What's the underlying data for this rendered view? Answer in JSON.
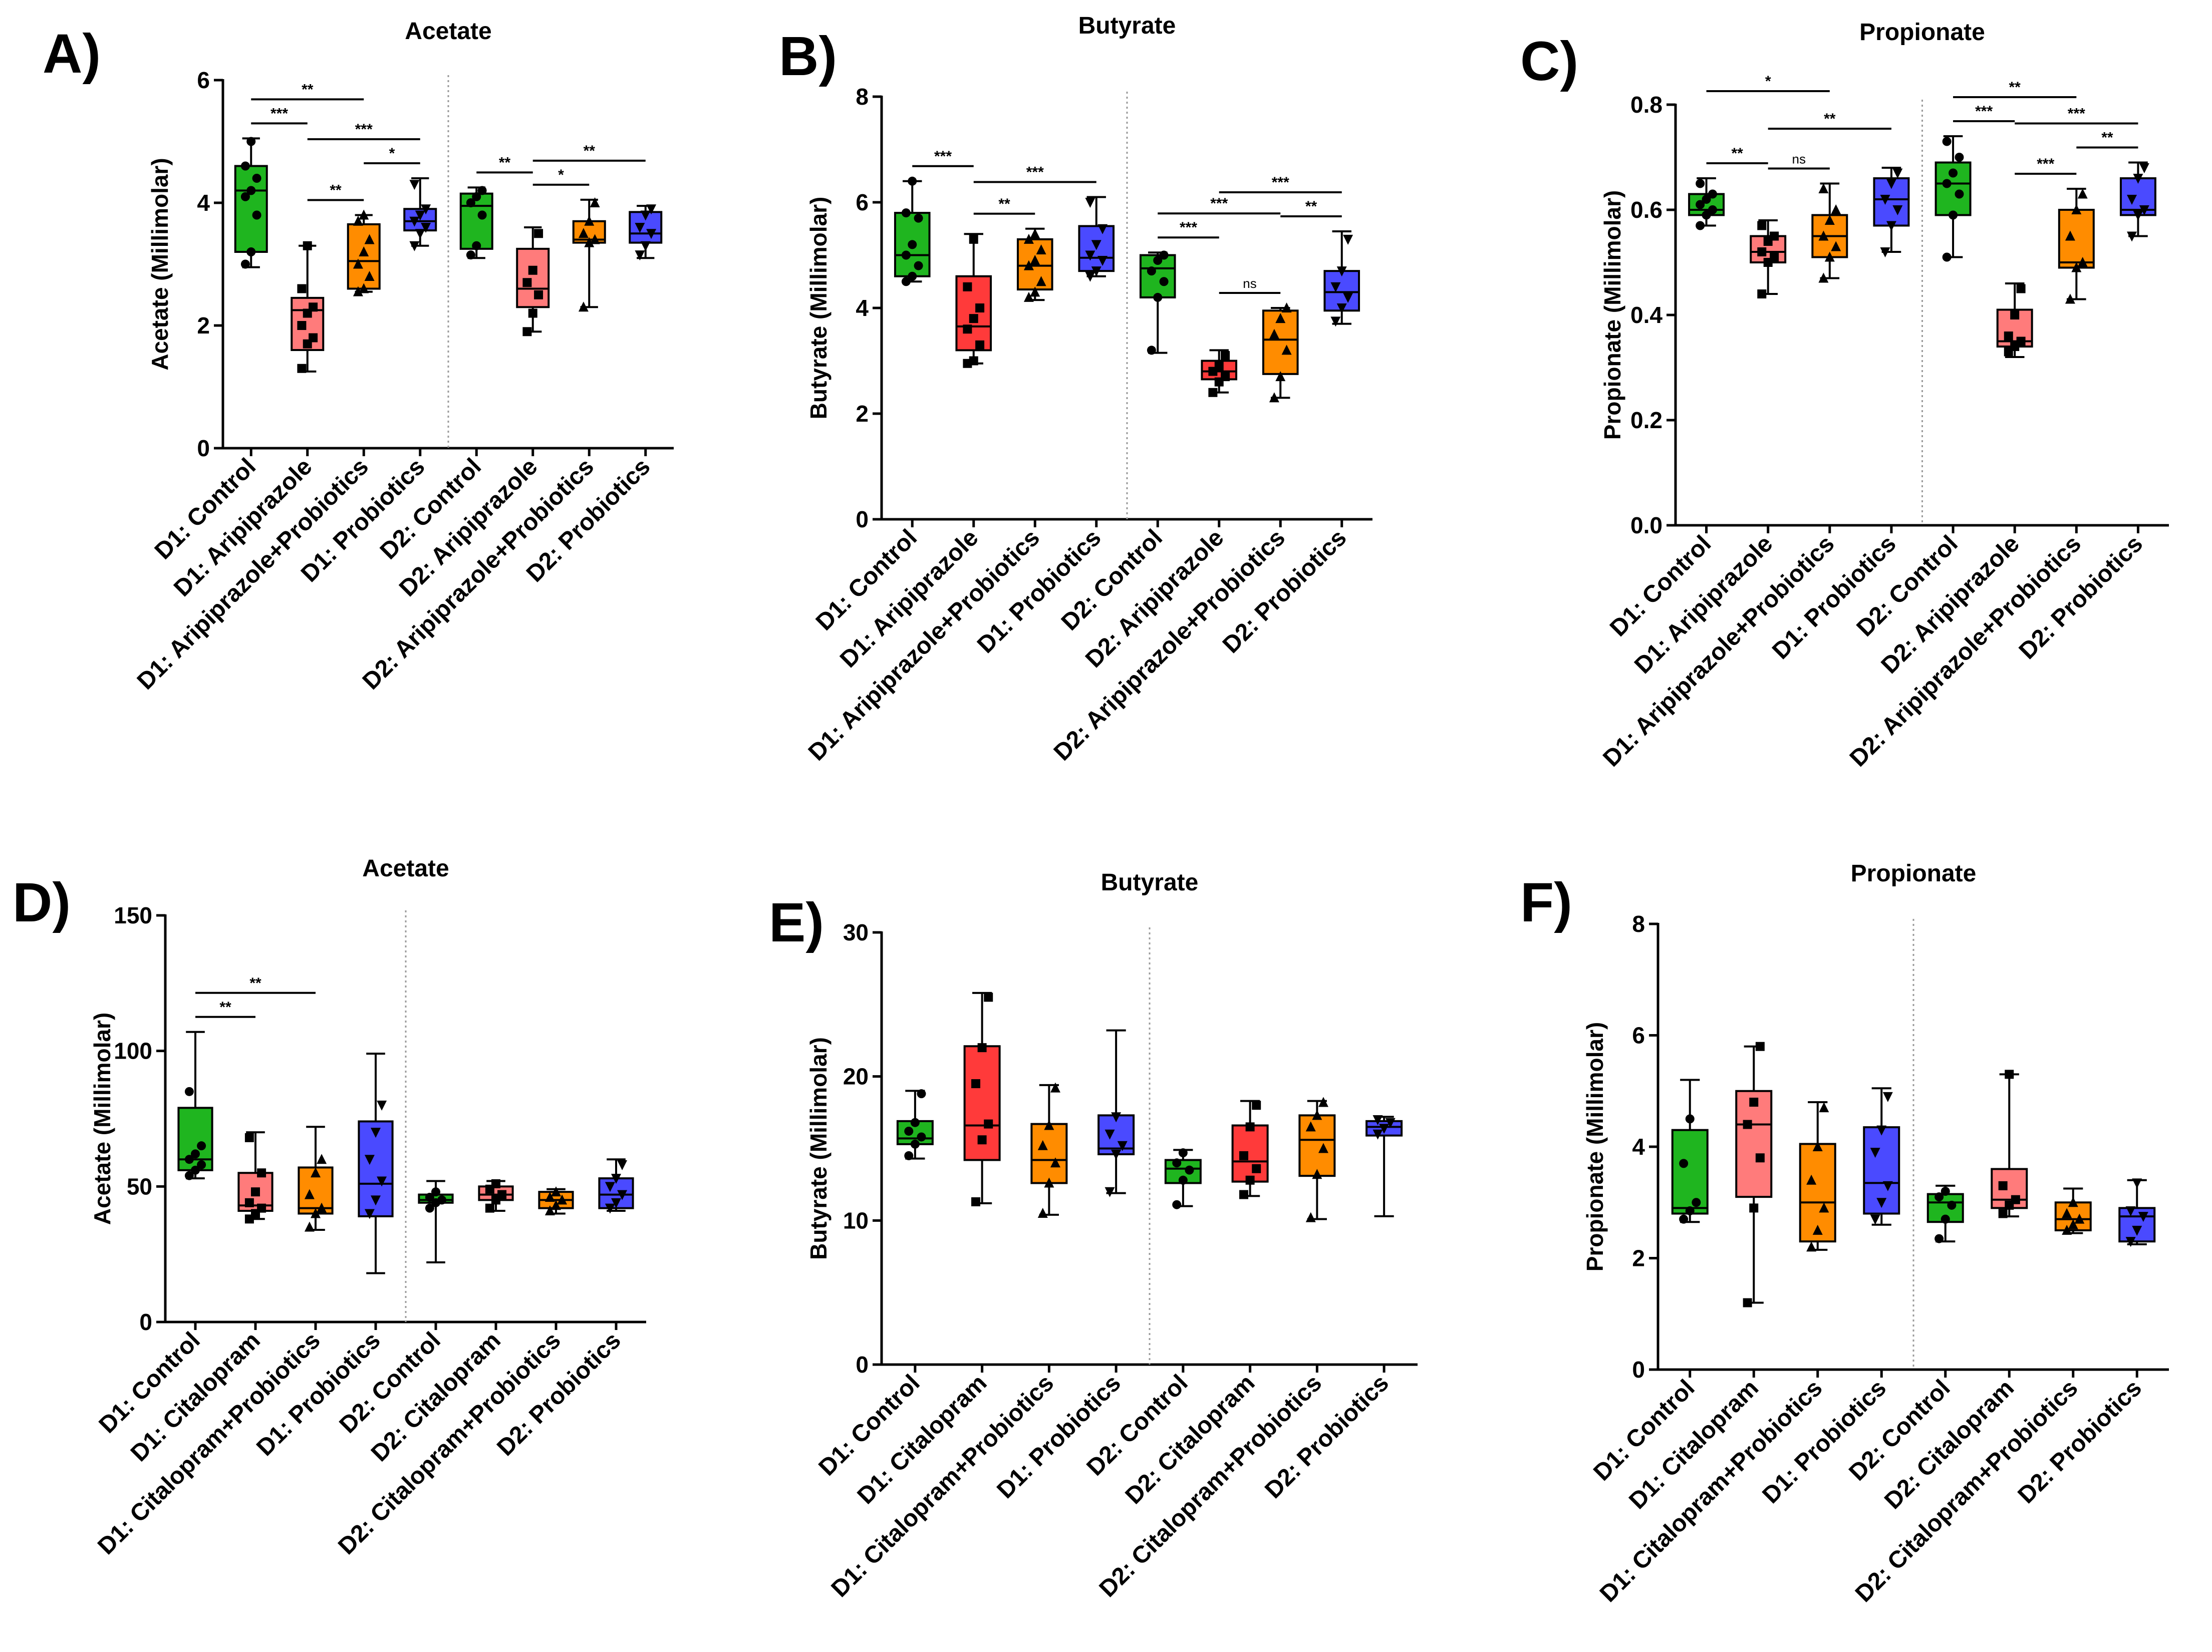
{
  "chart_data": [
    {
      "panel_label": "A)",
      "type": "box",
      "title": "Acetate",
      "ylabel": "Acetate (Millimolar)",
      "ylim": [
        0,
        6
      ],
      "yticks": [
        "0",
        "2",
        "4",
        "6"
      ],
      "categories": [
        "D1: Control",
        "D1: Aripiprazole",
        "D1: Aripiprazole+Probiotics",
        "D1: Probiotics",
        "D2: Control",
        "D2: Aripiprazole",
        "D2: Aripiprazole+Probiotics",
        "D2: Probiotics"
      ],
      "boxes": [
        {
          "min": 2.95,
          "q1": 3.2,
          "median": 4.2,
          "q3": 4.6,
          "max": 5.05,
          "points": [
            3.0,
            3.2,
            3.8,
            4.1,
            4.2,
            4.4,
            4.6,
            5.0
          ]
        },
        {
          "min": 1.25,
          "q1": 1.6,
          "median": 2.25,
          "q3": 2.45,
          "max": 3.3,
          "points": [
            1.3,
            1.7,
            1.8,
            2.0,
            2.2,
            2.3,
            2.6,
            3.3
          ]
        },
        {
          "min": 2.55,
          "q1": 2.6,
          "median": 3.05,
          "q3": 3.65,
          "max": 3.8,
          "points": [
            2.55,
            2.6,
            2.8,
            3.0,
            3.2,
            3.4,
            3.7,
            3.8
          ]
        },
        {
          "min": 3.3,
          "q1": 3.55,
          "median": 3.7,
          "q3": 3.9,
          "max": 4.4,
          "points": [
            3.3,
            3.5,
            3.6,
            3.7,
            3.8,
            3.9,
            4.3
          ]
        },
        {
          "min": 3.1,
          "q1": 3.25,
          "median": 3.95,
          "q3": 4.15,
          "max": 4.25,
          "points": [
            3.15,
            3.3,
            3.8,
            4.0,
            4.1,
            4.2
          ]
        },
        {
          "min": 1.9,
          "q1": 2.3,
          "median": 2.6,
          "q3": 3.25,
          "max": 3.6,
          "points": [
            1.9,
            2.2,
            2.5,
            2.7,
            2.9,
            3.5
          ]
        },
        {
          "min": 2.3,
          "q1": 3.35,
          "median": 3.4,
          "q3": 3.7,
          "max": 4.05,
          "points": [
            2.3,
            3.35,
            3.4,
            3.5,
            3.7,
            4.0
          ]
        },
        {
          "min": 3.1,
          "q1": 3.35,
          "median": 3.5,
          "q3": 3.85,
          "max": 3.95,
          "points": [
            3.15,
            3.3,
            3.5,
            3.6,
            3.8,
            3.9
          ]
        }
      ],
      "significance": [
        {
          "from": 0,
          "to": 2,
          "label": "**"
        },
        {
          "from": 0,
          "to": 1,
          "label": "***"
        },
        {
          "from": 1,
          "to": 3,
          "label": "***"
        },
        {
          "from": 1,
          "to": 2,
          "label": "**"
        },
        {
          "from": 2,
          "to": 3,
          "label": "*"
        },
        {
          "from": 4,
          "to": 5,
          "label": "**"
        },
        {
          "from": 5,
          "to": 7,
          "label": "**"
        },
        {
          "from": 5,
          "to": 6,
          "label": "*"
        }
      ]
    },
    {
      "panel_label": "B)",
      "type": "box",
      "title": "Butyrate",
      "ylabel": "Butyrate (Millimolar)",
      "ylim": [
        0,
        8
      ],
      "yticks": [
        "0",
        "2",
        "4",
        "6",
        "8"
      ],
      "categories": [
        "D1: Control",
        "D1: Aripiprazole",
        "D1: Aripiprazole+Probiotics",
        "D1: Probiotics",
        "D2: Control",
        "D2: Aripiprazole",
        "D2: Aripiprazole+Probiotics",
        "D2: Probiotics"
      ],
      "boxes": [
        {
          "min": 4.5,
          "q1": 4.6,
          "median": 5.0,
          "q3": 5.8,
          "max": 6.4,
          "points": [
            4.5,
            4.6,
            4.8,
            5.0,
            5.2,
            5.7,
            5.8,
            6.4
          ]
        },
        {
          "min": 2.95,
          "q1": 3.2,
          "median": 3.65,
          "q3": 4.6,
          "max": 5.4,
          "points": [
            2.95,
            3.0,
            3.3,
            3.6,
            3.8,
            4.0,
            4.4,
            5.3
          ]
        },
        {
          "min": 4.15,
          "q1": 4.35,
          "median": 4.8,
          "q3": 5.3,
          "max": 5.5,
          "points": [
            4.2,
            4.3,
            4.5,
            4.8,
            4.9,
            5.1,
            5.3,
            5.4
          ]
        },
        {
          "min": 4.6,
          "q1": 4.7,
          "median": 4.95,
          "q3": 5.55,
          "max": 6.1,
          "points": [
            4.6,
            4.7,
            4.9,
            5.0,
            5.2,
            5.5,
            6.0
          ]
        },
        {
          "min": 3.15,
          "q1": 4.2,
          "median": 4.75,
          "q3": 5.0,
          "max": 5.05,
          "points": [
            3.2,
            4.2,
            4.5,
            4.7,
            4.9,
            5.0
          ]
        },
        {
          "min": 2.4,
          "q1": 2.65,
          "median": 2.8,
          "q3": 3.0,
          "max": 3.2,
          "points": [
            2.4,
            2.6,
            2.7,
            2.8,
            2.9,
            3.1
          ]
        },
        {
          "min": 2.3,
          "q1": 2.75,
          "median": 3.4,
          "q3": 3.95,
          "max": 4.0,
          "points": [
            2.3,
            2.7,
            3.2,
            3.5,
            3.8,
            4.0
          ]
        },
        {
          "min": 3.7,
          "q1": 3.95,
          "median": 4.3,
          "q3": 4.7,
          "max": 5.45,
          "points": [
            3.75,
            4.0,
            4.2,
            4.4,
            4.7,
            5.3
          ]
        }
      ],
      "significance": [
        {
          "from": 0,
          "to": 1,
          "label": "***"
        },
        {
          "from": 1,
          "to": 3,
          "label": "***"
        },
        {
          "from": 1,
          "to": 2,
          "label": "**"
        },
        {
          "from": 4,
          "to": 5,
          "label": "***"
        },
        {
          "from": 5,
          "to": 7,
          "label": "***"
        },
        {
          "from": 4,
          "to": 6,
          "label": "***"
        },
        {
          "from": 6,
          "to": 7,
          "label": "**"
        },
        {
          "from": 5,
          "to": 6,
          "label": "ns"
        }
      ]
    },
    {
      "panel_label": "C)",
      "type": "box",
      "title": "Propionate",
      "ylabel": "Propionate (Millimolar)",
      "ylim": [
        0,
        0.8
      ],
      "yticks": [
        "0.0",
        "0.2",
        "0.4",
        "0.6",
        "0.8"
      ],
      "categories": [
        "D1: Control",
        "D1: Aripiprazole",
        "D1: Aripiprazole+Probiotics",
        "D1: Probiotics",
        "D2: Control",
        "D2: Aripiprazole",
        "D2: Aripiprazole+Probiotics",
        "D2: Probiotics"
      ],
      "boxes": [
        {
          "min": 0.57,
          "q1": 0.59,
          "median": 0.6,
          "q3": 0.63,
          "max": 0.66,
          "points": [
            0.57,
            0.59,
            0.6,
            0.61,
            0.62,
            0.63,
            0.65
          ]
        },
        {
          "min": 0.44,
          "q1": 0.5,
          "median": 0.52,
          "q3": 0.55,
          "max": 0.58,
          "points": [
            0.44,
            0.5,
            0.51,
            0.52,
            0.54,
            0.55,
            0.57
          ]
        },
        {
          "min": 0.47,
          "q1": 0.51,
          "median": 0.55,
          "q3": 0.59,
          "max": 0.65,
          "points": [
            0.47,
            0.51,
            0.53,
            0.55,
            0.58,
            0.6,
            0.64
          ]
        },
        {
          "min": 0.52,
          "q1": 0.57,
          "median": 0.62,
          "q3": 0.66,
          "max": 0.68,
          "points": [
            0.52,
            0.57,
            0.6,
            0.62,
            0.65,
            0.67
          ]
        },
        {
          "min": 0.51,
          "q1": 0.59,
          "median": 0.65,
          "q3": 0.69,
          "max": 0.74,
          "points": [
            0.51,
            0.59,
            0.63,
            0.65,
            0.67,
            0.7,
            0.73
          ]
        },
        {
          "min": 0.32,
          "q1": 0.34,
          "median": 0.35,
          "q3": 0.41,
          "max": 0.46,
          "points": [
            0.33,
            0.34,
            0.35,
            0.36,
            0.4,
            0.45
          ]
        },
        {
          "min": 0.43,
          "q1": 0.49,
          "median": 0.5,
          "q3": 0.6,
          "max": 0.64,
          "points": [
            0.43,
            0.49,
            0.5,
            0.55,
            0.6,
            0.63
          ]
        },
        {
          "min": 0.55,
          "q1": 0.59,
          "median": 0.6,
          "q3": 0.66,
          "max": 0.69,
          "points": [
            0.55,
            0.59,
            0.6,
            0.62,
            0.66,
            0.68
          ]
        }
      ],
      "significance": [
        {
          "from": 0,
          "to": 1,
          "label": "**"
        },
        {
          "from": 1,
          "to": 3,
          "label": "**"
        },
        {
          "from": 0,
          "to": 2,
          "label": "*"
        },
        {
          "from": 1,
          "to": 2,
          "label": "ns"
        },
        {
          "from": 4,
          "to": 5,
          "label": "***"
        },
        {
          "from": 5,
          "to": 7,
          "label": "***"
        },
        {
          "from": 4,
          "to": 6,
          "label": "**"
        },
        {
          "from": 6,
          "to": 7,
          "label": "**"
        },
        {
          "from": 5,
          "to": 6,
          "label": "***"
        }
      ]
    },
    {
      "panel_label": "D)",
      "type": "box",
      "title": "Acetate",
      "ylabel": "Acetate (Millimolar)",
      "ylim": [
        0,
        150
      ],
      "yticks": [
        "0",
        "50",
        "100",
        "150"
      ],
      "categories": [
        "D1: Control",
        "D1: Citalopram",
        "D1: Citalopram+Probiotics",
        "D1: Probiotics",
        "D2: Control",
        "D2: Citalopram",
        "D2: Citalopram+Probiotics",
        "D2: Probiotics"
      ],
      "boxes": [
        {
          "min": 53,
          "q1": 56,
          "median": 60,
          "q3": 79,
          "max": 107,
          "points": [
            54,
            56,
            58,
            60,
            62,
            65,
            85
          ]
        },
        {
          "min": 38,
          "q1": 41,
          "median": 43,
          "q3": 55,
          "max": 70,
          "points": [
            38,
            40,
            42,
            44,
            48,
            55,
            68
          ]
        },
        {
          "min": 34,
          "q1": 40,
          "median": 42,
          "q3": 57,
          "max": 72,
          "points": [
            35,
            40,
            42,
            47,
            55,
            60
          ]
        },
        {
          "min": 18,
          "q1": 39,
          "median": 51,
          "q3": 74,
          "max": 99,
          "points": [
            40,
            45,
            52,
            60,
            70,
            80
          ]
        },
        {
          "min": 22,
          "q1": 44,
          "median": 45,
          "q3": 47,
          "max": 52,
          "points": [
            42,
            44,
            45,
            46,
            48
          ]
        },
        {
          "min": 41,
          "q1": 45,
          "median": 47,
          "q3": 50,
          "max": 52,
          "points": [
            42,
            45,
            47,
            49,
            51
          ]
        },
        {
          "min": 40,
          "q1": 42,
          "median": 45,
          "q3": 48,
          "max": 49,
          "points": [
            41,
            43,
            45,
            46,
            48
          ]
        },
        {
          "min": 41,
          "q1": 42,
          "median": 47,
          "q3": 53,
          "max": 60,
          "points": [
            42,
            44,
            47,
            50,
            53,
            58
          ]
        }
      ],
      "significance": [
        {
          "from": 0,
          "to": 2,
          "label": "**"
        },
        {
          "from": 0,
          "to": 1,
          "label": "**"
        }
      ]
    },
    {
      "panel_label": "E)",
      "type": "box",
      "title": "Butyrate",
      "ylabel": "Butyrate (Millimolar)",
      "ylim": [
        0,
        30
      ],
      "yticks": [
        "0",
        "10",
        "20",
        "30"
      ],
      "categories": [
        "D1: Control",
        "D1: Citalopram",
        "D1: Citalopram+Probiotics",
        "D1: Probiotics",
        "D2: Control",
        "D2: Citalopram",
        "D2: Citalopram+Probiotics",
        "D2: Probiotics"
      ],
      "boxes": [
        {
          "min": 14.3,
          "q1": 15.3,
          "median": 15.7,
          "q3": 16.9,
          "max": 19.0,
          "points": [
            14.5,
            15.3,
            15.8,
            16.2,
            16.8,
            18.8
          ]
        },
        {
          "min": 11.2,
          "q1": 14.2,
          "median": 16.6,
          "q3": 22.1,
          "max": 25.8,
          "points": [
            11.3,
            15.6,
            16.7,
            19.5,
            22.0,
            25.5
          ]
        },
        {
          "min": 10.4,
          "q1": 12.6,
          "median": 14.2,
          "q3": 16.7,
          "max": 19.4,
          "points": [
            10.5,
            12.6,
            14.0,
            15.2,
            16.6,
            19.2
          ]
        },
        {
          "min": 11.9,
          "q1": 14.6,
          "median": 15.0,
          "q3": 17.3,
          "max": 23.2,
          "points": [
            12.0,
            14.6,
            15.2,
            16.0,
            17.2
          ]
        },
        {
          "min": 11.0,
          "q1": 12.6,
          "median": 13.6,
          "q3": 14.2,
          "max": 14.9,
          "points": [
            11.1,
            12.8,
            13.5,
            14.0,
            14.7
          ]
        },
        {
          "min": 11.7,
          "q1": 12.7,
          "median": 14.1,
          "q3": 16.6,
          "max": 18.3,
          "points": [
            11.8,
            12.8,
            13.6,
            14.5,
            16.5,
            18.0
          ]
        },
        {
          "min": 10.1,
          "q1": 13.1,
          "median": 15.6,
          "q3": 17.3,
          "max": 18.3,
          "points": [
            10.2,
            13.2,
            15.0,
            16.5,
            17.3,
            18.2
          ]
        },
        {
          "min": 10.3,
          "q1": 15.9,
          "median": 16.5,
          "q3": 16.9,
          "max": 17.2,
          "points": [
            16.0,
            16.4,
            16.8,
            17.0
          ]
        }
      ],
      "significance": []
    },
    {
      "panel_label": "F)",
      "type": "box",
      "title": "Propionate",
      "ylabel": "Propionate (Millimolar)",
      "ylim": [
        0,
        8
      ],
      "yticks": [
        "0",
        "2",
        "4",
        "6",
        "8"
      ],
      "categories": [
        "D1: Control",
        "D1: Citalopram",
        "D1: Citalopram+Probiotics",
        "D1: Probiotics",
        "D2: Control",
        "D2: Citalopram",
        "D2: Citalopram+Probiotics",
        "D2: Probiotics"
      ],
      "boxes": [
        {
          "min": 2.65,
          "q1": 2.8,
          "median": 2.9,
          "q3": 4.3,
          "max": 5.2,
          "points": [
            2.7,
            2.85,
            3.0,
            3.7,
            4.5
          ]
        },
        {
          "min": 1.2,
          "q1": 3.1,
          "median": 4.4,
          "q3": 5.0,
          "max": 5.8,
          "points": [
            1.2,
            2.9,
            3.8,
            4.4,
            4.8,
            5.8
          ]
        },
        {
          "min": 2.15,
          "q1": 2.3,
          "median": 3.0,
          "q3": 4.05,
          "max": 4.8,
          "points": [
            2.2,
            2.5,
            2.9,
            3.4,
            4.0,
            4.7
          ]
        },
        {
          "min": 2.6,
          "q1": 2.8,
          "median": 3.35,
          "q3": 4.35,
          "max": 5.05,
          "points": [
            2.7,
            3.0,
            3.3,
            3.9,
            4.3,
            4.9
          ]
        },
        {
          "min": 2.3,
          "q1": 2.65,
          "median": 3.0,
          "q3": 3.15,
          "max": 3.3,
          "points": [
            2.35,
            2.7,
            2.95,
            3.1,
            3.2
          ]
        },
        {
          "min": 2.75,
          "q1": 2.9,
          "median": 3.05,
          "q3": 3.6,
          "max": 5.3,
          "points": [
            2.8,
            2.95,
            3.05,
            3.3,
            5.3
          ]
        },
        {
          "min": 2.45,
          "q1": 2.5,
          "median": 2.7,
          "q3": 3.0,
          "max": 3.25,
          "points": [
            2.5,
            2.6,
            2.7,
            2.8,
            3.0
          ]
        },
        {
          "min": 2.25,
          "q1": 2.3,
          "median": 2.75,
          "q3": 2.9,
          "max": 3.4,
          "points": [
            2.3,
            2.5,
            2.75,
            2.85,
            3.35
          ]
        }
      ],
      "significance": []
    }
  ],
  "colors": {
    "group_fills": [
      "#1fb51f",
      "#ff7b7b",
      "#ff8c00",
      "#4a4aff",
      "#1fb51f",
      "#ff7b7b",
      "#ff8c00",
      "#4a4aff"
    ],
    "group_fills_b": [
      "#1fb51f",
      "#ff3a3a",
      "#ff8c00",
      "#4a4aff",
      "#1fb51f",
      "#ff3a3a",
      "#ff8c00",
      "#4a4aff"
    ],
    "group_fills_e": [
      "#1fb51f",
      "#ff3a3a",
      "#ff8c00",
      "#4a4aff",
      "#1fb51f",
      "#ff3a3a",
      "#ff8c00",
      "#4a4aff"
    ],
    "divider": "#9a9a9a",
    "ink": "#000000"
  }
}
